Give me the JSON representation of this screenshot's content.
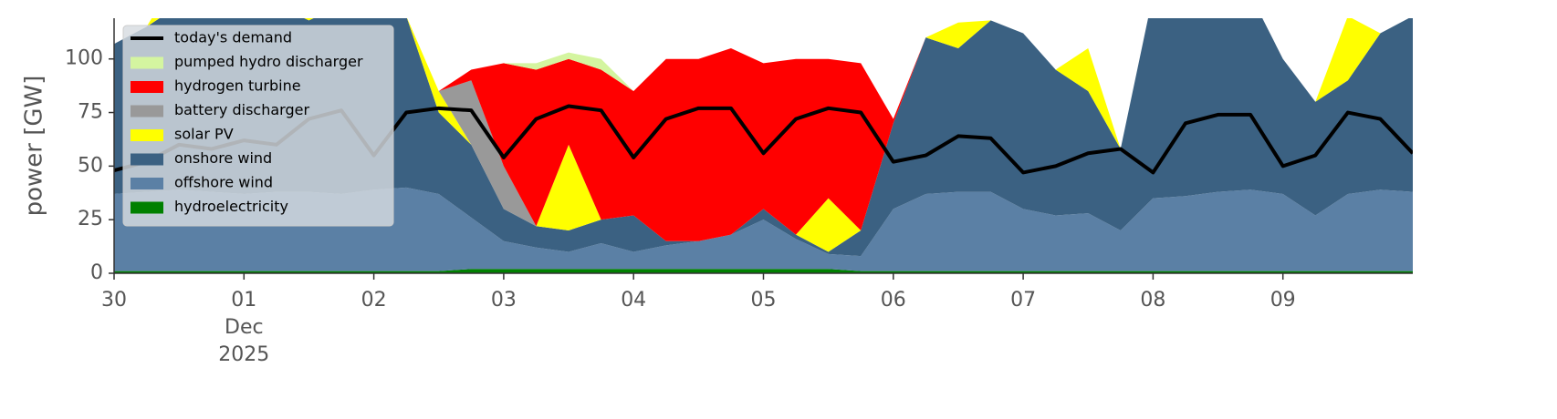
{
  "chart_data": {
    "type": "area",
    "y_label": "power [GW]",
    "x": [
      0,
      0.25,
      0.5,
      0.75,
      1,
      1.25,
      1.5,
      1.75,
      2,
      2.25,
      2.5,
      2.75,
      3,
      3.25,
      3.5,
      3.75,
      4,
      4.25,
      4.5,
      4.75,
      5,
      5.25,
      5.5,
      5.75,
      6,
      6.25,
      6.5,
      6.75,
      7,
      7.25,
      7.5,
      7.75,
      8,
      8.25,
      8.5,
      8.75,
      9,
      9.25,
      9.5,
      9.75,
      10
    ],
    "xlim": [
      0,
      10
    ],
    "xticks": [
      {
        "value": 0,
        "label": "30"
      },
      {
        "value": 1,
        "label": "01"
      },
      {
        "value": 2,
        "label": "02"
      },
      {
        "value": 3,
        "label": "03"
      },
      {
        "value": 4,
        "label": "04"
      },
      {
        "value": 5,
        "label": "05"
      },
      {
        "value": 6,
        "label": "06"
      },
      {
        "value": 7,
        "label": "07"
      },
      {
        "value": 8,
        "label": "08"
      },
      {
        "value": 9,
        "label": "09"
      }
    ],
    "month_label": "Dec",
    "year_label": "2025",
    "ylim": [
      0,
      119
    ],
    "yticks": [
      0,
      25,
      50,
      75,
      100
    ],
    "grid": false,
    "legend": "upper left",
    "series": [
      {
        "name": "today's demand",
        "type": "line",
        "color": "#000000",
        "values": [
          48,
          52,
          60,
          58,
          62,
          60,
          72,
          76,
          55,
          75,
          77,
          76,
          54,
          72,
          78,
          76,
          54,
          72,
          77,
          77,
          56,
          72,
          77,
          75,
          52,
          55,
          64,
          63,
          47,
          50,
          56,
          58,
          47,
          70,
          74,
          74,
          50,
          55,
          75,
          72,
          56
        ]
      },
      {
        "name": "pumped hydro discharger",
        "type": "area",
        "color": "#d4f5a0",
        "values": [
          0,
          0,
          0,
          0,
          0,
          0,
          0,
          0,
          0,
          0,
          0,
          0,
          0,
          3,
          3,
          5,
          0,
          0,
          0,
          0,
          0,
          0,
          0,
          0,
          0,
          0,
          0,
          0,
          0,
          0,
          0,
          0,
          0,
          0,
          0,
          0,
          0,
          0,
          0,
          0,
          0
        ]
      },
      {
        "name": "hydrogen turbine",
        "type": "area",
        "color": "#ff0000",
        "values": [
          0,
          0,
          0,
          0,
          0,
          0,
          0,
          0,
          0,
          0,
          0,
          5,
          48,
          73,
          40,
          70,
          58,
          85,
          85,
          87,
          68,
          82,
          65,
          78,
          2,
          0,
          0,
          0,
          0,
          0,
          0,
          0,
          0,
          0,
          0,
          0,
          0,
          0,
          0,
          0,
          0
        ]
      },
      {
        "name": "battery discharger",
        "type": "area",
        "color": "#999999",
        "values": [
          0,
          0,
          0,
          0,
          0,
          0,
          0,
          0,
          0,
          0,
          0,
          30,
          20,
          0,
          0,
          0,
          0,
          0,
          0,
          0,
          0,
          0,
          0,
          0,
          0,
          0,
          0,
          0,
          0,
          0,
          0,
          0,
          0,
          0,
          0,
          0,
          0,
          0,
          0,
          0,
          0
        ]
      },
      {
        "name": "solar PV",
        "type": "area",
        "color": "#ffff00",
        "values": [
          0,
          0,
          15,
          0,
          0,
          0,
          20,
          0,
          0,
          0,
          10,
          0,
          0,
          0,
          40,
          0,
          0,
          0,
          0,
          0,
          0,
          0,
          25,
          0,
          0,
          0,
          12,
          0,
          0,
          0,
          20,
          0,
          0,
          0,
          0,
          0,
          0,
          0,
          30,
          0,
          0
        ]
      },
      {
        "name": "onshore wind",
        "type": "area",
        "color": "#3b6182",
        "values": [
          70,
          77,
          86,
          87,
          83,
          87,
          80,
          88,
          91,
          80,
          38,
          34,
          15,
          10,
          10,
          11,
          17,
          2,
          0,
          0,
          5,
          2,
          1,
          12,
          40,
          73,
          67,
          80,
          82,
          68,
          57,
          38,
          95,
          94,
          92,
          91,
          63,
          53,
          53,
          73,
          82
        ]
      },
      {
        "name": "offshore wind",
        "type": "area",
        "color": "#5b80a5",
        "values": [
          36,
          37,
          38,
          37,
          36,
          37,
          37,
          36,
          38,
          39,
          36,
          24,
          13,
          10,
          8,
          12,
          8,
          11,
          13,
          16,
          23,
          14,
          7,
          7,
          29,
          36,
          37,
          37,
          29,
          26,
          27,
          19,
          34,
          35,
          37,
          38,
          36,
          26,
          36,
          38,
          37
        ]
      },
      {
        "name": "hydroelectricity",
        "type": "area",
        "color": "#008000",
        "values": [
          1,
          1,
          1,
          1,
          1,
          1,
          1,
          1,
          1,
          1,
          1,
          2,
          2,
          2,
          2,
          2,
          2,
          2,
          2,
          2,
          2,
          2,
          2,
          1,
          1,
          1,
          1,
          1,
          1,
          1,
          1,
          1,
          1,
          1,
          1,
          1,
          1,
          1,
          1,
          1,
          1
        ]
      }
    ]
  }
}
